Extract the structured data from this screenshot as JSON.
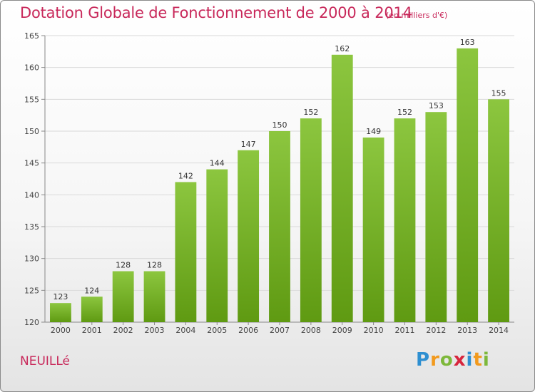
{
  "header": {
    "title": "Dotation Globale de Fonctionnement de 2000 à 2014",
    "subtitle": "(en milliers d'€)"
  },
  "footer": {
    "commune": "NEUILLé",
    "logo_letters": [
      "P",
      "r",
      "o",
      "x",
      "i",
      "t",
      "i"
    ],
    "logo_colors": [
      "#2e8fd1",
      "#f29a1d",
      "#7db83a",
      "#d7263d",
      "#2e8fd1",
      "#f29a1d",
      "#7db83a"
    ]
  },
  "chart_data": {
    "type": "bar",
    "categories": [
      "2000",
      "2001",
      "2002",
      "2003",
      "2004",
      "2005",
      "2006",
      "2007",
      "2008",
      "2009",
      "2010",
      "2011",
      "2012",
      "2013",
      "2014"
    ],
    "values": [
      123,
      124,
      128,
      128,
      142,
      144,
      147,
      150,
      152,
      162,
      149,
      152,
      153,
      163,
      155
    ],
    "title": "Dotation Globale de Fonctionnement de 2000 à 2014",
    "subtitle": "(en milliers d'€)",
    "xlabel": "",
    "ylabel": "",
    "ylim": [
      120,
      165
    ],
    "yticks": [
      120,
      125,
      130,
      135,
      140,
      145,
      150,
      155,
      160,
      165
    ],
    "grid": true,
    "legend": "none",
    "bar_color": "#8cc63f",
    "bar_color_dark": "#5f9a12"
  }
}
